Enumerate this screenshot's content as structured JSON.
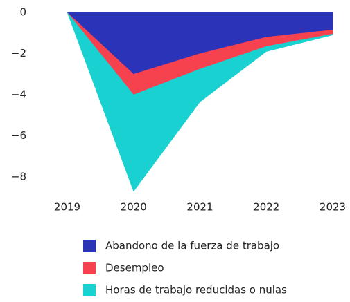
{
  "chart_data": {
    "type": "area",
    "categories": [
      "2019",
      "2020",
      "2021",
      "2022",
      "2023"
    ],
    "series": [
      {
        "name": "Abandono de la fuerza de trabajo",
        "color": "#2b34b8",
        "values": [
          0,
          -3.0,
          -2.0,
          -1.2,
          -0.85
        ]
      },
      {
        "name": "Desempleo",
        "color": "#f6414f",
        "values": [
          0,
          -1.0,
          -0.75,
          -0.45,
          -0.2
        ]
      },
      {
        "name": "Horas de trabajo reducidas o nulas",
        "color": "#19d1d1",
        "values": [
          0,
          -4.7,
          -1.6,
          -0.25,
          -0.05
        ]
      }
    ],
    "stacked": true,
    "ylim": [
      -8.8,
      0
    ],
    "yticks": [
      {
        "value": -8,
        "label": "−8"
      },
      {
        "value": -6,
        "label": "−6"
      },
      {
        "value": -4,
        "label": "−4"
      },
      {
        "value": -2,
        "label": "−2"
      },
      0
    ],
    "grid": false,
    "legend": "bottom"
  }
}
